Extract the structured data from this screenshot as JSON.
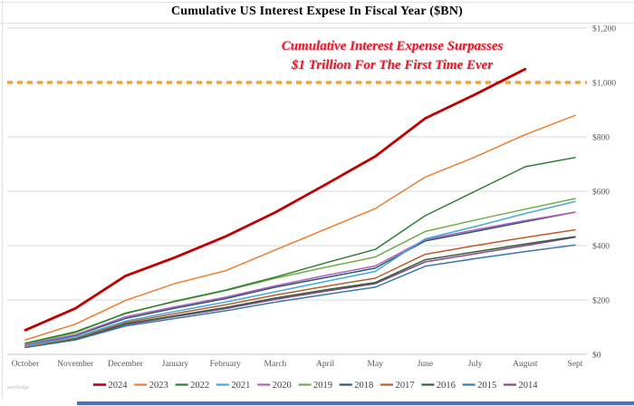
{
  "page": {
    "title": "Cumulative US Interest Expese In Fiscal Year ($BN)",
    "watermark": "zerohedge",
    "colors": {
      "grid": "#d9d9d9",
      "axis_text": "#595959",
      "legend_text": "#404040",
      "annotation": "#e8192d",
      "reference": "#f0a43c",
      "bottom_bar": "#4472c4"
    }
  },
  "chart_data": {
    "type": "line",
    "title": "Cumulative US Interest Expese In Fiscal Year ($BN)",
    "xlabel": "",
    "ylabel": "",
    "x_categories": [
      "October",
      "November",
      "December",
      "January",
      "February",
      "March",
      "April",
      "May",
      "June",
      "July",
      "August",
      "Sept"
    ],
    "y_axis": {
      "min": 0,
      "max": 1200,
      "step": 200,
      "side": "right",
      "tick_labels": [
        "$0",
        "$200",
        "$400",
        "$600",
        "$800",
        "$1,000",
        "$1,200"
      ]
    },
    "grid": true,
    "legend_position": "bottom",
    "reference_line": {
      "value": 1000,
      "style": "dashed",
      "color": "#f0a43c",
      "label": "$1,000"
    },
    "annotation": {
      "lines": [
        "Cumulative Interest Expense Surpasses",
        "$1 Trillion For The First Time Ever"
      ],
      "color": "#e8192d"
    },
    "series": [
      {
        "name": "2024",
        "color": "#c00000",
        "emphasis": true,
        "values": [
          89,
          169,
          288,
          357,
          433,
          522,
          624,
          728,
          868,
          956,
          1049
        ]
      },
      {
        "name": "2023",
        "color": "#ed7d31",
        "values": [
          53,
          111,
          198,
          261,
          307,
          384,
          460,
          536,
          652,
          726,
          808,
          879
        ]
      },
      {
        "name": "2022",
        "color": "#2e7d32",
        "values": [
          41,
          83,
          150,
          196,
          236,
          284,
          336,
          386,
          510,
          600,
          690,
          724
        ]
      },
      {
        "name": "2021",
        "color": "#45aadd",
        "values": [
          30,
          63,
          122,
          158,
          192,
          230,
          268,
          305,
          425,
          470,
          518,
          562
        ]
      },
      {
        "name": "2020",
        "color": "#b35fc0",
        "values": [
          35,
          72,
          138,
          175,
          210,
          252,
          290,
          325,
          422,
          458,
          492,
          523
        ]
      },
      {
        "name": "2019",
        "color": "#70ad47",
        "values": [
          38,
          79,
          152,
          194,
          234,
          280,
          320,
          358,
          452,
          494,
          534,
          573
        ]
      },
      {
        "name": "2018",
        "color": "#27596e",
        "values": [
          33,
          69,
          132,
          170,
          205,
          247,
          282,
          317,
          417,
          452,
          488,
          523
        ]
      },
      {
        "name": "2017",
        "color": "#bf5b28",
        "values": [
          28,
          59,
          117,
          150,
          182,
          218,
          250,
          280,
          368,
          400,
          430,
          458
        ]
      },
      {
        "name": "2016",
        "color": "#2f6040",
        "values": [
          27,
          56,
          112,
          142,
          172,
          207,
          237,
          264,
          348,
          377,
          406,
          433
        ]
      },
      {
        "name": "2015",
        "color": "#3878ae",
        "values": [
          25,
          53,
          104,
          132,
          160,
          192,
          220,
          247,
          324,
          352,
          378,
          402
        ]
      },
      {
        "name": "2014",
        "color": "#8e4585",
        "values": [
          26,
          55,
          109,
          139,
          168,
          202,
          232,
          260,
          340,
          370,
          400,
          431
        ]
      }
    ]
  }
}
